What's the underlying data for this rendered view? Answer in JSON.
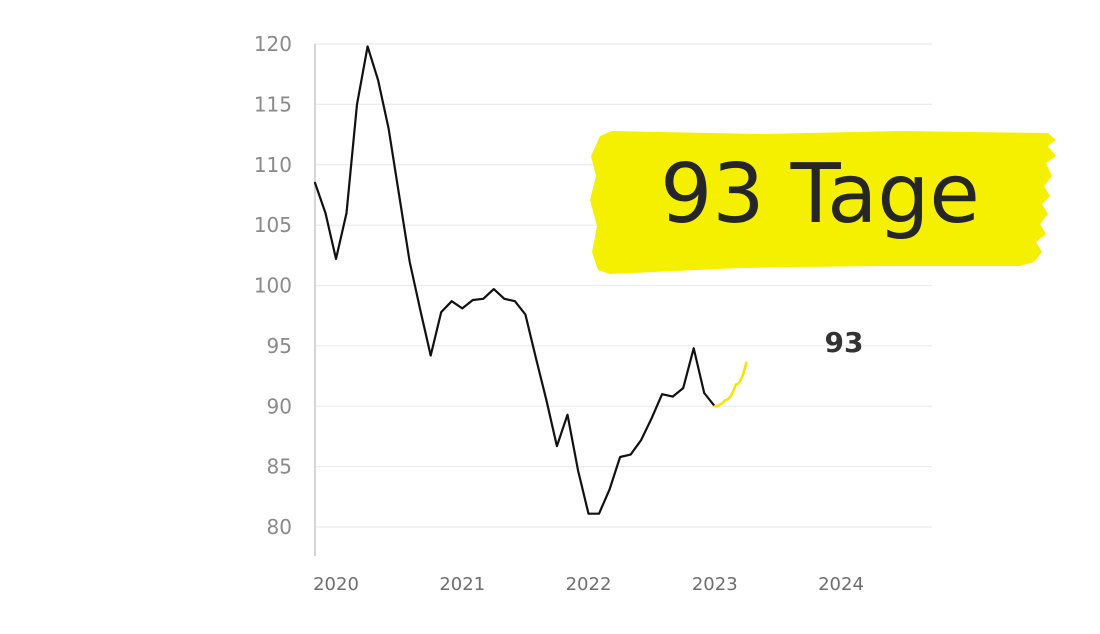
{
  "headline": "93 Tage",
  "colors": {
    "line": "#111111",
    "forecast": "#f2e600",
    "highlight": "#f5f000",
    "grid": "#ececec",
    "axis": "#c8c8c8"
  },
  "chart_data": {
    "type": "line",
    "title": "",
    "xlabel": "",
    "ylabel": "",
    "ylim": [
      80,
      120
    ],
    "yticks": [
      120,
      115,
      110,
      105,
      100,
      95,
      90,
      85,
      80
    ],
    "xticks": [
      "2020",
      "2021",
      "2022",
      "2023",
      "2024"
    ],
    "grid": true,
    "series": [
      {
        "values": [
          {
            "x": "2019-11",
            "y": 108.5
          },
          {
            "x": "2019-12",
            "y": 106.0
          },
          {
            "x": "2020-01",
            "y": 102.2
          },
          {
            "x": "2020-02",
            "y": 106.0
          },
          {
            "x": "2020-03",
            "y": 115.0
          },
          {
            "x": "2020-04",
            "y": 119.8
          },
          {
            "x": "2020-05",
            "y": 117.0
          },
          {
            "x": "2020-06",
            "y": 113.0
          },
          {
            "x": "2020-07",
            "y": 107.5
          },
          {
            "x": "2020-08",
            "y": 102.0
          },
          {
            "x": "2020-09",
            "y": 98.0
          },
          {
            "x": "2020-10",
            "y": 94.2
          },
          {
            "x": "2020-11",
            "y": 97.8
          },
          {
            "x": "2020-12",
            "y": 98.7
          },
          {
            "x": "2021-01",
            "y": 98.1
          },
          {
            "x": "2021-02",
            "y": 98.8
          },
          {
            "x": "2021-03",
            "y": 98.9
          },
          {
            "x": "2021-04",
            "y": 99.7
          },
          {
            "x": "2021-05",
            "y": 98.9
          },
          {
            "x": "2021-06",
            "y": 98.7
          },
          {
            "x": "2021-07",
            "y": 97.6
          },
          {
            "x": "2021-08",
            "y": 94.0
          },
          {
            "x": "2021-09",
            "y": 90.5
          },
          {
            "x": "2021-10",
            "y": 86.7
          },
          {
            "x": "2021-11",
            "y": 89.3
          },
          {
            "x": "2021-12",
            "y": 84.7
          },
          {
            "x": "2022-01",
            "y": 81.1
          },
          {
            "x": "2022-02",
            "y": 81.1
          },
          {
            "x": "2022-03",
            "y": 83.1
          },
          {
            "x": "2022-04",
            "y": 85.8
          },
          {
            "x": "2022-05",
            "y": 86.0
          },
          {
            "x": "2022-06",
            "y": 87.2
          },
          {
            "x": "2022-07",
            "y": 89.0
          },
          {
            "x": "2022-08",
            "y": 91.0
          },
          {
            "x": "2022-09",
            "y": 90.8
          },
          {
            "x": "2022-10",
            "y": 91.5
          },
          {
            "x": "2022-11",
            "y": 94.8
          },
          {
            "x": "2022-12",
            "y": 91.1
          },
          {
            "x": "2023-01",
            "y": 90.0
          }
        ]
      },
      {
        "forecast": true,
        "values": [
          {
            "x": "2023-01",
            "y": 90.0
          },
          {
            "x": "2023-02",
            "y": 90.5
          },
          {
            "x": "2023-03",
            "y": 91.8
          },
          {
            "x": "2023-04",
            "y": 93.6
          }
        ],
        "end_label": "93"
      }
    ]
  }
}
